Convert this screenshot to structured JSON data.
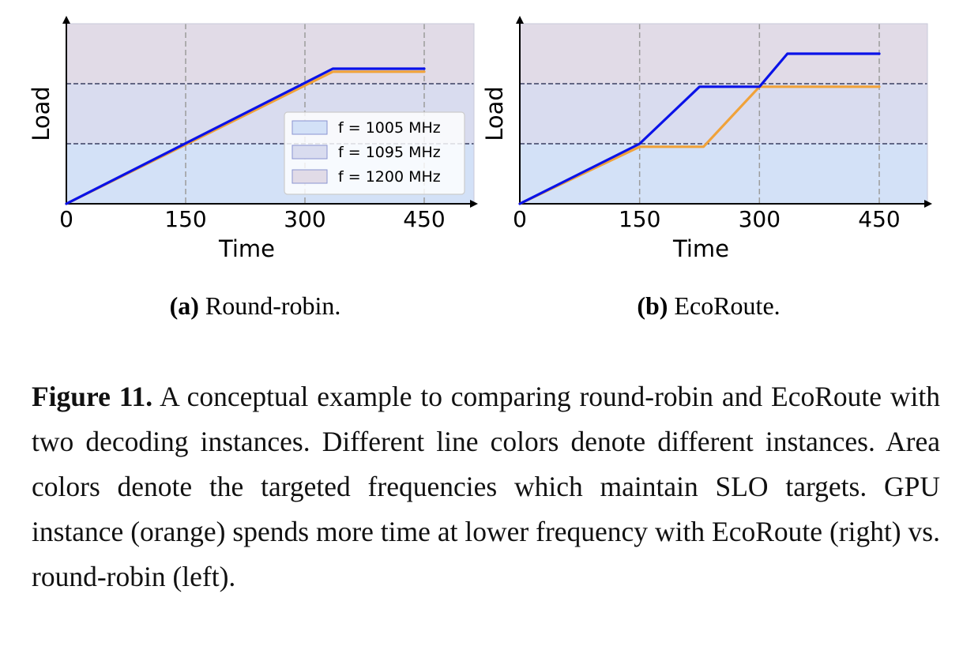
{
  "chart_data": [
    {
      "type": "line",
      "panel": "a",
      "subcaption_label": "(a)",
      "subcaption_text": " Round-robin.",
      "xlabel": "Time",
      "ylabel": "Load",
      "xticks": [
        0,
        150,
        300,
        450
      ],
      "xlim": [
        0,
        510
      ],
      "ylim": [
        0,
        3
      ],
      "grid": true,
      "legend_position": "lower-right",
      "bands": [
        {
          "label": "f = 1005 MHz",
          "from": 0,
          "to": 1,
          "color": "#d3e1f7"
        },
        {
          "label": "f = 1095 MHz",
          "from": 1,
          "to": 2,
          "color": "#d9dcef"
        },
        {
          "label": "f = 1200 MHz",
          "from": 2,
          "to": 3,
          "color": "#e1dbe7"
        }
      ],
      "series": [
        {
          "color": "#f0a23a",
          "x": [
            0,
            335,
            450
          ],
          "y": [
            0,
            2.2,
            2.2
          ]
        },
        {
          "color": "#0a12e8",
          "x": [
            0,
            335,
            450
          ],
          "y": [
            0,
            2.25,
            2.25
          ]
        }
      ]
    },
    {
      "type": "line",
      "panel": "b",
      "subcaption_label": "(b)",
      "subcaption_text": " EcoRoute.",
      "xlabel": "Time",
      "ylabel": "Load",
      "xticks": [
        0,
        150,
        300,
        450
      ],
      "xlim": [
        0,
        510
      ],
      "ylim": [
        0,
        3
      ],
      "grid": true,
      "bands": [
        {
          "from": 0,
          "to": 1,
          "color": "#d3e1f7"
        },
        {
          "from": 1,
          "to": 2,
          "color": "#d9dcef"
        },
        {
          "from": 2,
          "to": 3,
          "color": "#e1dbe7"
        }
      ],
      "series": [
        {
          "color": "#f0a23a",
          "x": [
            0,
            150,
            230,
            300,
            450
          ],
          "y": [
            0,
            0.95,
            0.95,
            1.95,
            1.95
          ]
        },
        {
          "color": "#0a12e8",
          "x": [
            0,
            150,
            225,
            300,
            335,
            450
          ],
          "y": [
            0,
            1.0,
            1.95,
            1.95,
            2.5,
            2.5
          ]
        }
      ]
    }
  ],
  "caption": {
    "label": "Figure 11.",
    "text": " A conceptual example to comparing round-robin and EcoRoute with two decoding instances. Different line colors denote different instances. Area colors denote the targeted frequencies which maintain SLO targets. GPU instance (orange) spends more time at lower frequency with EcoRoute (right) vs. round-robin (left)."
  }
}
